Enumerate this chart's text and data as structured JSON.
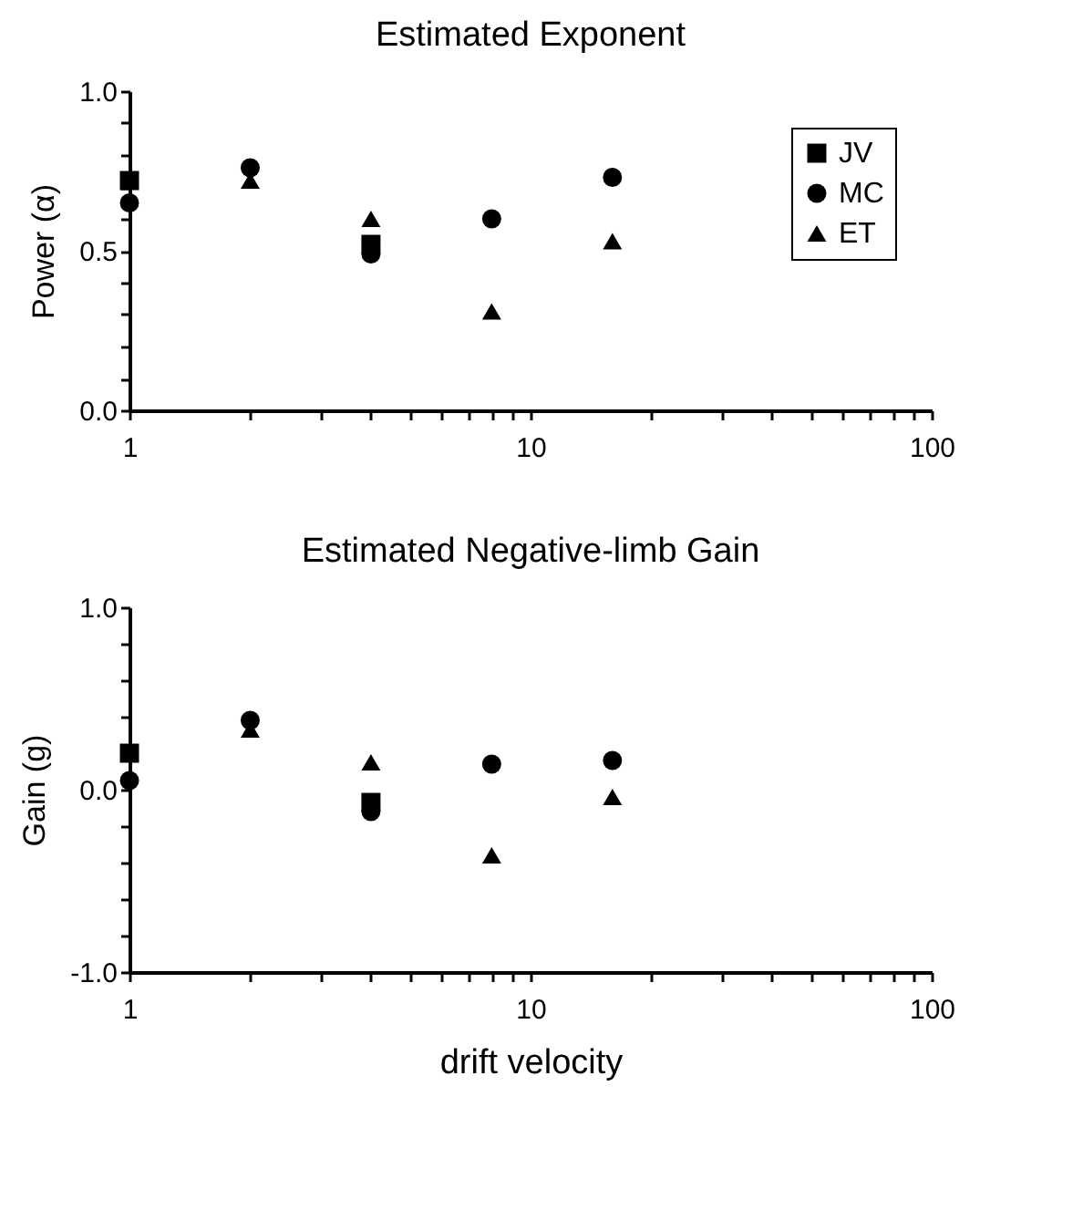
{
  "chart_data": [
    {
      "type": "scatter",
      "title": "Estimated Exponent",
      "ylabel": "Power (α)",
      "xlim": [
        1,
        100
      ],
      "xticks": [
        1,
        {
          "value": 2,
          "label": null
        },
        {
          "value": 3,
          "label": null
        },
        {
          "value": 4,
          "label": null
        },
        {
          "value": 5,
          "label": null
        },
        {
          "value": 6,
          "label": null
        },
        {
          "value": 7,
          "label": null
        },
        {
          "value": 8,
          "label": null
        },
        {
          "value": 9,
          "label": null
        },
        10,
        {
          "value": 20,
          "label": null
        },
        {
          "value": 30,
          "label": null
        },
        {
          "value": 40,
          "label": null
        },
        {
          "value": 50,
          "label": null
        },
        {
          "value": 60,
          "label": null
        },
        {
          "value": 70,
          "label": null
        },
        {
          "value": 80,
          "label": null
        },
        {
          "value": 90,
          "label": null
        },
        100
      ],
      "ylim": [
        0,
        1
      ],
      "yticks": [
        {
          "value": 0,
          "label": "0.0"
        },
        {
          "value": 0.1,
          "label": null
        },
        {
          "value": 0.2,
          "label": null
        },
        {
          "value": 0.3,
          "label": null
        },
        {
          "value": 0.4,
          "label": null
        },
        {
          "value": 0.5,
          "label": "0.5"
        },
        {
          "value": 0.6,
          "label": null
        },
        {
          "value": 0.7,
          "label": null
        },
        {
          "value": 0.8,
          "label": null
        },
        {
          "value": 0.9,
          "label": null
        },
        {
          "value": 1,
          "label": "1.0"
        }
      ],
      "log": "x",
      "grid": false,
      "legend": "right",
      "series": [
        {
          "name": "JV",
          "color": "#000000",
          "marker": "square",
          "x": [
            1,
            4
          ],
          "values": [
            0.72,
            0.52
          ]
        },
        {
          "name": "MC",
          "color": "#000000",
          "marker": "circle",
          "x": [
            1,
            2,
            4,
            8,
            16
          ],
          "values": [
            0.65,
            0.76,
            0.49,
            0.6,
            0.73
          ]
        },
        {
          "name": "ET",
          "color": "#000000",
          "marker": "triangle",
          "x": [
            2,
            4,
            8,
            16
          ],
          "values": [
            0.72,
            0.6,
            0.31,
            0.53
          ]
        }
      ]
    },
    {
      "type": "scatter",
      "title": "Estimated Negative-limb Gain",
      "ylabel": "Gain (g)",
      "xlabel": "drift velocity",
      "xlim": [
        1,
        100
      ],
      "xticks": [
        1,
        {
          "value": 2,
          "label": null
        },
        {
          "value": 3,
          "label": null
        },
        {
          "value": 4,
          "label": null
        },
        {
          "value": 5,
          "label": null
        },
        {
          "value": 6,
          "label": null
        },
        {
          "value": 7,
          "label": null
        },
        {
          "value": 8,
          "label": null
        },
        {
          "value": 9,
          "label": null
        },
        10,
        {
          "value": 20,
          "label": null
        },
        {
          "value": 30,
          "label": null
        },
        {
          "value": 40,
          "label": null
        },
        {
          "value": 50,
          "label": null
        },
        {
          "value": 60,
          "label": null
        },
        {
          "value": 70,
          "label": null
        },
        {
          "value": 80,
          "label": null
        },
        {
          "value": 90,
          "label": null
        },
        100
      ],
      "ylim": [
        -1,
        1
      ],
      "yticks": [
        {
          "value": -1,
          "label": "-1.0"
        },
        {
          "value": -0.8,
          "label": null
        },
        {
          "value": -0.6,
          "label": null
        },
        {
          "value": -0.4,
          "label": null
        },
        {
          "value": -0.2,
          "label": null
        },
        {
          "value": 0,
          "label": "0.0"
        },
        {
          "value": 0.2,
          "label": null
        },
        {
          "value": 0.4,
          "label": null
        },
        {
          "value": 0.6,
          "label": null
        },
        {
          "value": 0.8,
          "label": null
        },
        {
          "value": 1,
          "label": "1.0"
        }
      ],
      "log": "x",
      "grid": false,
      "legend": false,
      "series": [
        {
          "color": "#000000",
          "marker": "square",
          "x": [
            1,
            4
          ],
          "values": [
            0.2,
            -0.07
          ]
        },
        {
          "color": "#000000",
          "marker": "circle",
          "x": [
            1,
            2,
            4,
            8,
            16
          ],
          "values": [
            0.05,
            0.38,
            -0.12,
            0.14,
            0.16
          ]
        },
        {
          "color": "#000000",
          "marker": "triangle",
          "x": [
            2,
            4,
            8,
            16
          ],
          "values": [
            0.33,
            0.15,
            -0.36,
            -0.04
          ]
        }
      ]
    }
  ]
}
